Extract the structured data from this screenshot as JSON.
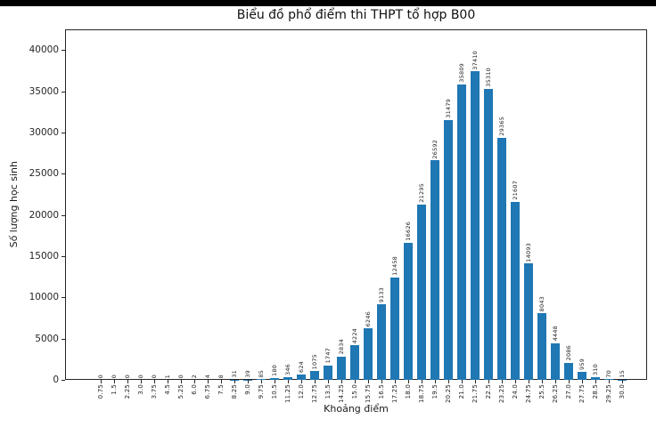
{
  "window": {
    "top_strip_color": "#000000",
    "background_color": "#ffffff"
  },
  "chart_data": {
    "type": "bar",
    "title": "Biểu đồ phổ điểm thi THPT tổ hợp B00",
    "xlabel": "Khoảng điểm",
    "ylabel": "Số lượng học sinh",
    "bar_color": "#1f77b4",
    "text_color": "#262626",
    "grid": false,
    "legend": "none",
    "ylim": [
      0,
      42500
    ],
    "yticks": [
      0,
      5000,
      10000,
      15000,
      20000,
      25000,
      30000,
      35000,
      40000
    ],
    "categories": [
      "0.75",
      "1.5",
      "2.25",
      "3.0",
      "3.75",
      "4.5",
      "5.25",
      "6.0",
      "6.75",
      "7.5",
      "8.25",
      "9.0",
      "9.75",
      "10.5",
      "11.25",
      "12.0",
      "12.75",
      "13.5",
      "14.25",
      "15.0",
      "15.75",
      "16.5",
      "17.25",
      "18.0",
      "18.75",
      "19.5",
      "20.25",
      "21.0",
      "21.75",
      "22.5",
      "23.25",
      "24.0",
      "24.75",
      "25.5",
      "26.25",
      "27.0",
      "27.75",
      "28.5",
      "29.25",
      "30.0"
    ],
    "values": [
      0,
      0,
      0,
      0,
      0,
      1,
      0,
      2,
      4,
      8,
      31,
      39,
      85,
      180,
      346,
      624,
      1075,
      1747,
      2834,
      4224,
      6246,
      9133,
      12458,
      16626,
      21295,
      26592,
      31479,
      35809,
      37410,
      35310,
      29365,
      21607,
      14093,
      8043,
      4448,
      2086,
      959,
      310,
      70,
      15
    ],
    "value_labels_shown": true,
    "tick_label_rotation": 90
  }
}
